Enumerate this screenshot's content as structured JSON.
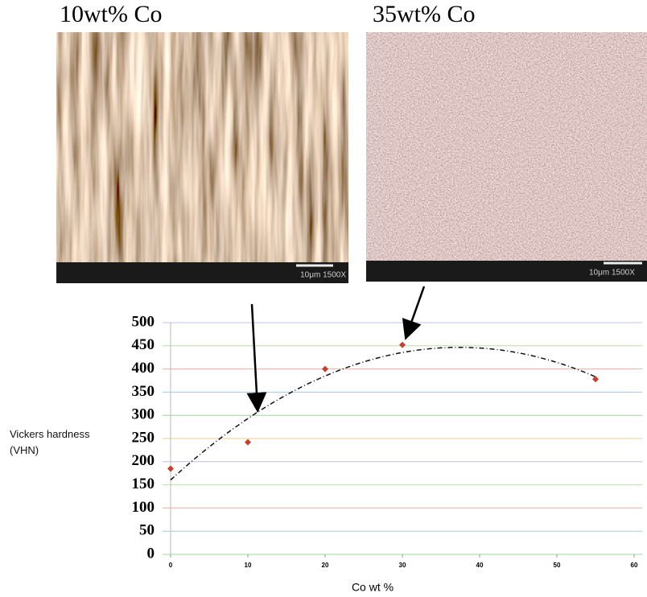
{
  "images": [
    {
      "label": "10wt% Co",
      "scale_text": "10μm 1500X"
    },
    {
      "label": "35wt% Co",
      "scale_text": "10μm 1500X"
    }
  ],
  "chart_data": {
    "type": "scatter",
    "ylabel": "Vickers hardness (VHN)",
    "xlabel": "Co wt %",
    "x": [
      0,
      10,
      20,
      30,
      55
    ],
    "values": [
      185,
      242,
      400,
      452,
      378
    ],
    "color": "#c8402a",
    "xlim": [
      0,
      60
    ],
    "xticks": [
      0,
      10,
      20,
      30,
      40,
      50,
      60
    ],
    "ylim": [
      0,
      500
    ],
    "yticks": [
      0,
      50,
      100,
      150,
      200,
      250,
      300,
      350,
      400,
      450,
      500
    ],
    "grid": true,
    "trendline": "quadratic"
  }
}
